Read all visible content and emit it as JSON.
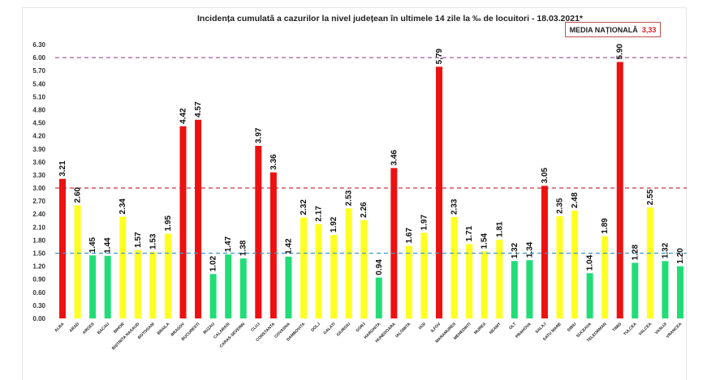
{
  "chart_data": {
    "type": "bar",
    "title": "Incidența cumulată a cazurilor la nivel județean în ultimele 14 zile la ‰ de locuitori - 18.03.2021*",
    "xlabel": "",
    "ylabel": "",
    "ylim": [
      0,
      6.3
    ],
    "yticks": [
      "0.00",
      "0.30",
      "0.60",
      "0.90",
      "1.20",
      "1.50",
      "1.80",
      "2.10",
      "2.40",
      "2.70",
      "3.00",
      "3.30",
      "3.60",
      "3.90",
      "4.20",
      "4.50",
      "4.80",
      "5.10",
      "5.40",
      "5.70",
      "6.00",
      "6.30"
    ],
    "grid": false,
    "legend": "none",
    "media_nationala": {
      "label": "MEDIA NAȚIONALĂ",
      "value": "3,33"
    },
    "reference_lines": [
      {
        "value": 6.0,
        "color": "#a25aa0"
      },
      {
        "value": 3.0,
        "color": "#c0202a"
      },
      {
        "value": 1.5,
        "color": "#3a9ad0"
      }
    ],
    "colors": {
      "red": "#ee1111",
      "yellow": "#ffff22",
      "green": "#22dd77"
    },
    "categories": [
      "ALBA",
      "ARAD",
      "ARGES",
      "BACAU",
      "BIHOR",
      "BISTRITA NASAUD",
      "BOTOSANI",
      "BRAILA",
      "BRASOV",
      "BUCURESTI",
      "BUZAU",
      "CALARASI",
      "CARAS-SEVERIN",
      "CLUJ",
      "CONSTANTA",
      "COVASNA",
      "DAMBOVITA",
      "DOLJ",
      "GALATI",
      "GIURGIU",
      "GORJ",
      "HARGHITA",
      "HUNEDOARA",
      "IALOMITA",
      "IASI",
      "ILFOV",
      "MARAMURES",
      "MEHEDINTI",
      "MURES",
      "NEAMT",
      "OLT",
      "PRAHOVA",
      "SALAJ",
      "SATU MARE",
      "SIBIU",
      "SUCEAVA",
      "TELEORMAN",
      "TIMIS",
      "TULCEA",
      "VALCEA",
      "VASLUI",
      "VRANCEA"
    ],
    "values": [
      3.21,
      2.6,
      1.45,
      1.44,
      2.34,
      1.57,
      1.53,
      1.95,
      4.42,
      4.57,
      1.02,
      1.47,
      1.38,
      3.97,
      3.36,
      1.42,
      2.32,
      2.17,
      1.92,
      2.53,
      2.26,
      0.94,
      3.46,
      1.67,
      1.97,
      5.79,
      2.33,
      1.71,
      1.54,
      1.81,
      1.32,
      1.34,
      3.05,
      2.35,
      2.48,
      1.04,
      1.89,
      5.9,
      1.28,
      2.55,
      1.32,
      1.2
    ],
    "value_labels": [
      "3.21",
      "2.60",
      "1.45",
      "1.44",
      "2.34",
      "1.57",
      "1.53",
      "1.95",
      "4.42",
      "4.57",
      "1.02",
      "1.47",
      "1.38",
      "3.97",
      "3.36",
      "1.42",
      "2.32",
      "2.17",
      "1.92",
      "2.53",
      "2.26",
      "0.94",
      "3.46",
      "1.67",
      "1.97",
      "5,79",
      "2.33",
      "1.71",
      "1.54",
      "1.81",
      "1.32",
      "1.34",
      "3.05",
      "2.35",
      "2.48",
      "1.04",
      "1.89",
      "5.90",
      "1.28",
      "2.55",
      "1.32",
      "1.20"
    ],
    "bar_colors": [
      "red",
      "yellow",
      "green",
      "green",
      "yellow",
      "yellow",
      "yellow",
      "yellow",
      "red",
      "red",
      "green",
      "green",
      "green",
      "red",
      "red",
      "green",
      "yellow",
      "yellow",
      "yellow",
      "yellow",
      "yellow",
      "green",
      "red",
      "yellow",
      "yellow",
      "red",
      "yellow",
      "yellow",
      "yellow",
      "yellow",
      "green",
      "green",
      "red",
      "yellow",
      "yellow",
      "green",
      "yellow",
      "red",
      "green",
      "yellow",
      "green",
      "green"
    ]
  }
}
